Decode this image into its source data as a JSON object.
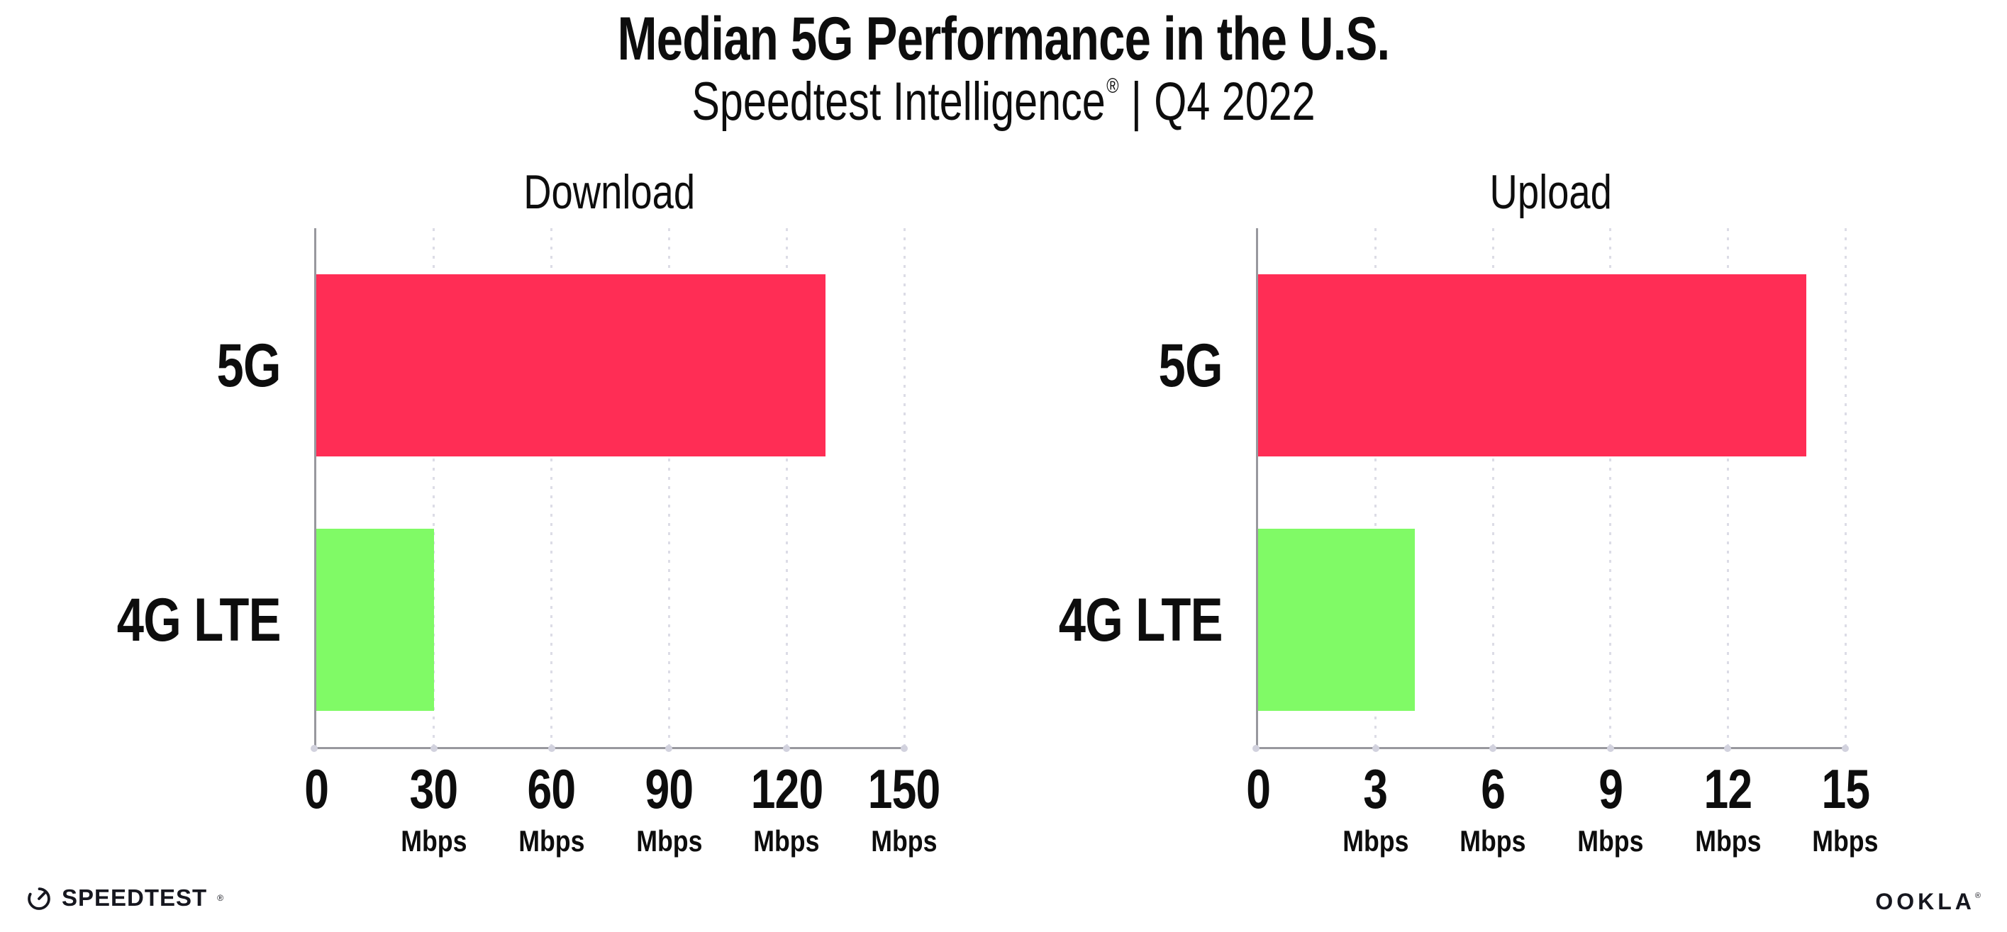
{
  "header": {
    "title": "Median 5G Performance in the U.S.",
    "subtitle_product": "Speedtest Intelligence",
    "subtitle_reg": "®",
    "subtitle_separator": "|",
    "subtitle_period": "Q4 2022"
  },
  "chart_data": [
    {
      "type": "bar",
      "orientation": "horizontal",
      "title": "Download",
      "categories": [
        "5G",
        "4G LTE"
      ],
      "values": [
        130,
        30
      ],
      "unit": "Mbps",
      "xlabel": "Mbps",
      "xlim": [
        0,
        150
      ],
      "ticks": [
        0,
        30,
        60,
        90,
        120,
        150
      ],
      "grid": "dotted-vertical-at-ticks",
      "legend": "none",
      "bar_colors": [
        "#FF2D55",
        "#80FA66"
      ]
    },
    {
      "type": "bar",
      "orientation": "horizontal",
      "title": "Upload",
      "categories": [
        "5G",
        "4G LTE"
      ],
      "values": [
        14,
        4
      ],
      "unit": "Mbps",
      "xlabel": "Mbps",
      "xlim": [
        0,
        15
      ],
      "ticks": [
        0,
        3,
        6,
        9,
        12,
        15
      ],
      "grid": "dotted-vertical-at-ticks",
      "legend": "none",
      "bar_colors": [
        "#FF2D55",
        "#80FA66"
      ]
    }
  ],
  "footer": {
    "speedtest_label": "SPEEDTEST",
    "ookla_label": "OOKLA",
    "reg_mark": "®"
  },
  "colors": {
    "bar_5g": "#FF2D55",
    "bar_4g_lte": "#80FA66",
    "axis": "#98989E",
    "gridline": "#DCDCE6",
    "text": "#0D0D0D"
  }
}
